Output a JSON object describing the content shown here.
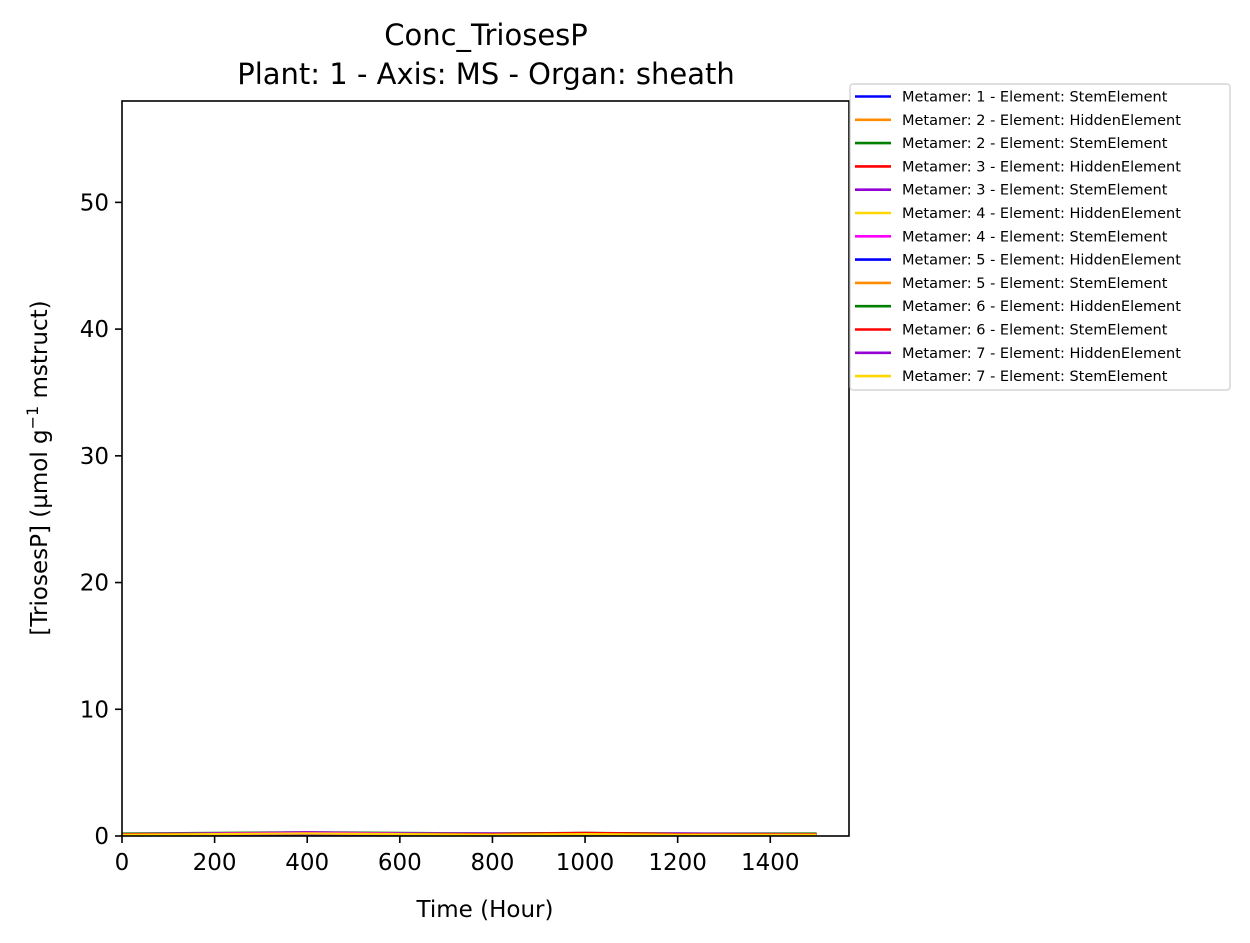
{
  "chart_data": {
    "type": "line",
    "title_line1": "Conc_TriosesP",
    "title_line2": "Plant: 1 - Axis: MS - Organ: sheath",
    "xlabel": "Time (Hour)",
    "ylabel_prefix": "[TriosesP] (µmol g",
    "ylabel_sup": "−1",
    "ylabel_suffix": " mstruct)",
    "xlim": [
      0,
      1570
    ],
    "ylim": [
      0,
      58
    ],
    "x_ticks": [
      0,
      200,
      400,
      600,
      800,
      1000,
      1200,
      1400
    ],
    "y_ticks": [
      0,
      10,
      20,
      30,
      40,
      50
    ],
    "x_tick_labels": [
      "0",
      "200",
      "400",
      "600",
      "800",
      "1000",
      "1200",
      "1400"
    ],
    "y_tick_labels": [
      "0",
      "10",
      "20",
      "30",
      "40",
      "50"
    ],
    "legend_position": "outside-top-right",
    "series": [
      {
        "name": "Metamer: 1 - Element: StemElement",
        "color": "#0000ff",
        "x": [
          0,
          200,
          400,
          600,
          800,
          1000,
          1200,
          1500
        ],
        "y": [
          0.15,
          0.2,
          0.25,
          0.2,
          0.2,
          0.2,
          0.2,
          0.15
        ]
      },
      {
        "name": "Metamer: 2 - Element: HiddenElement",
        "color": "#ff8c00",
        "x": [
          0,
          200,
          400,
          600,
          800,
          1000,
          1200,
          1500
        ],
        "y": [
          0.1,
          0.15,
          0.2,
          0.15,
          0.15,
          0.15,
          0.15,
          0.1
        ]
      },
      {
        "name": "Metamer: 2 - Element: StemElement",
        "color": "#008000",
        "x": [
          0,
          200,
          400,
          600,
          800,
          1000,
          1200,
          1500
        ],
        "y": [
          0.2,
          0.25,
          0.3,
          0.25,
          0.2,
          0.25,
          0.2,
          0.2
        ]
      },
      {
        "name": "Metamer: 3 - Element: HiddenElement",
        "color": "#ff0000",
        "x": [
          0,
          200,
          400,
          600,
          800,
          1000,
          1200,
          1500
        ],
        "y": [
          0.1,
          0.15,
          0.2,
          0.15,
          0.15,
          0.2,
          0.15,
          0.1
        ]
      },
      {
        "name": "Metamer: 3 - Element: StemElement",
        "color": "#9400d3",
        "x": [
          0,
          200,
          400,
          600,
          800,
          1000,
          1200,
          1500
        ],
        "y": [
          0.15,
          0.2,
          0.3,
          0.2,
          0.2,
          0.2,
          0.2,
          0.15
        ]
      },
      {
        "name": "Metamer: 4 - Element: HiddenElement",
        "color": "#ffd700",
        "x": [
          0,
          200,
          400,
          600,
          800,
          1000,
          1200,
          1500
        ],
        "y": [
          0.1,
          0.1,
          0.15,
          0.1,
          0.1,
          0.15,
          0.1,
          0.1
        ]
      },
      {
        "name": "Metamer: 4 - Element: StemElement",
        "color": "#ff00ff",
        "x": [
          0,
          200,
          400,
          600,
          800,
          1000,
          1200,
          1500
        ],
        "y": [
          0.15,
          0.2,
          0.25,
          0.2,
          0.15,
          0.2,
          0.15,
          0.15
        ]
      },
      {
        "name": "Metamer: 5 - Element: HiddenElement",
        "color": "#0000ff",
        "x": [
          0,
          200,
          400,
          600,
          800,
          1000,
          1200,
          1500
        ],
        "y": [
          0.1,
          0.1,
          0.15,
          0.1,
          0.1,
          0.1,
          0.1,
          0.1
        ]
      },
      {
        "name": "Metamer: 5 - Element: StemElement",
        "color": "#ff8c00",
        "x": [
          0,
          200,
          400,
          600,
          800,
          1000,
          1200,
          1500
        ],
        "y": [
          0.15,
          0.15,
          0.2,
          0.15,
          0.15,
          0.2,
          0.15,
          0.15
        ]
      },
      {
        "name": "Metamer: 6 - Element: HiddenElement",
        "color": "#008000",
        "x": [
          0,
          200,
          400,
          600,
          800,
          1000,
          1200,
          1500
        ],
        "y": [
          0.1,
          0.1,
          0.15,
          0.1,
          0.1,
          0.15,
          0.1,
          0.1
        ]
      },
      {
        "name": "Metamer: 6 - Element: StemElement",
        "color": "#ff0000",
        "x": [
          0,
          200,
          400,
          600,
          800,
          1000,
          1200,
          1500
        ],
        "y": [
          0.15,
          0.15,
          0.2,
          0.15,
          0.15,
          0.25,
          0.15,
          0.15
        ]
      },
      {
        "name": "Metamer: 7 - Element: HiddenElement",
        "color": "#9400d3",
        "x": [
          0,
          200,
          400,
          600,
          800,
          1000,
          1200,
          1500
        ],
        "y": [
          0.1,
          0.1,
          0.15,
          0.1,
          0.1,
          0.1,
          0.1,
          0.1
        ]
      },
      {
        "name": "Metamer: 7 - Element: StemElement",
        "color": "#ffd700",
        "x": [
          0,
          200,
          400,
          600,
          800,
          1000,
          1200,
          1500
        ],
        "y": [
          0.1,
          0.15,
          0.2,
          0.15,
          0.1,
          0.15,
          0.1,
          0.1
        ]
      }
    ]
  }
}
